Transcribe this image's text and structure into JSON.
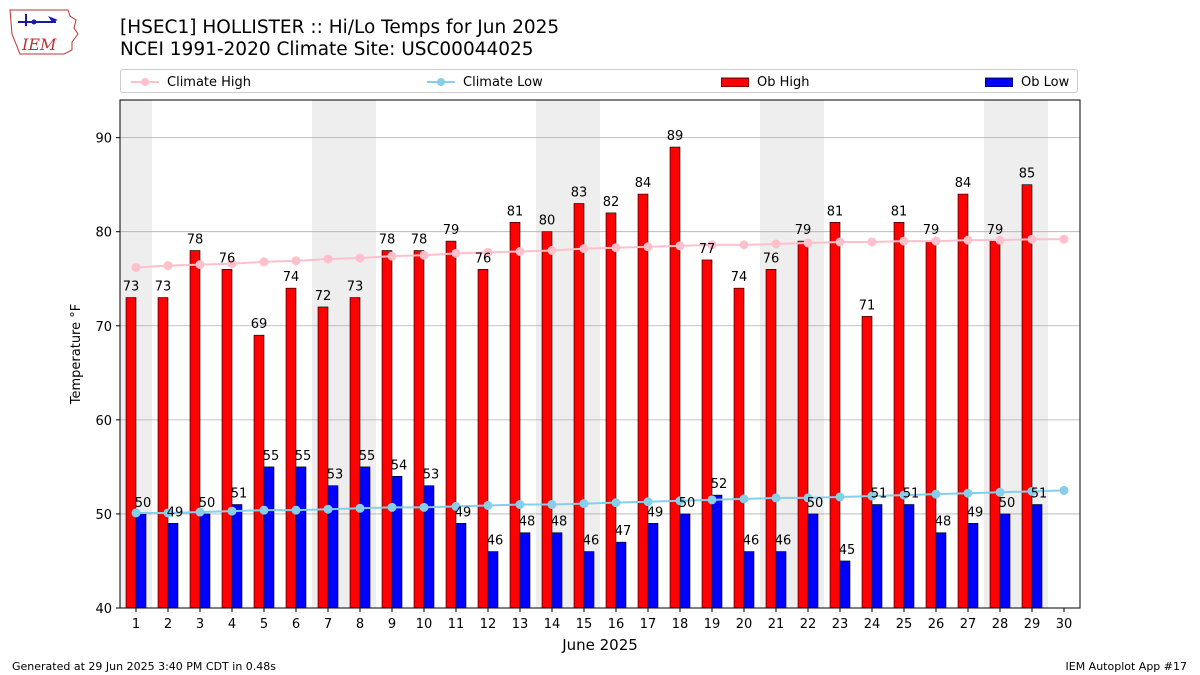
{
  "header": {
    "title_line1": "[HSEC1] HOLLISTER :: Hi/Lo Temps for Jun 2025",
    "title_line2": "NCEI 1991-2020 Climate Site: USC00044025"
  },
  "logo": {
    "text": "IEM"
  },
  "footer": {
    "left": "Generated at 29 Jun 2025 3:40 PM CDT in 0.48s",
    "right": "IEM Autoplot App #17"
  },
  "colors": {
    "ob_high": "#ff0000",
    "ob_low": "#0000ff",
    "climate_high": "#ffc0cb",
    "climate_low": "#87ceeb",
    "weekend_band": "#eeeeee",
    "grid": "#b0b0b0"
  },
  "chart_data": {
    "type": "bar",
    "xlabel": "June 2025",
    "ylabel": "Temperature °F",
    "ylim": [
      40,
      94
    ],
    "yticks": [
      40,
      50,
      60,
      70,
      80,
      90
    ],
    "grid": "horizontal",
    "legend_position": "top",
    "categories": [
      1,
      2,
      3,
      4,
      5,
      6,
      7,
      8,
      9,
      10,
      11,
      12,
      13,
      14,
      15,
      16,
      17,
      18,
      19,
      20,
      21,
      22,
      23,
      24,
      25,
      26,
      27,
      28,
      29,
      30
    ],
    "shaded_days": [
      1,
      7,
      8,
      14,
      15,
      21,
      22,
      28,
      29
    ],
    "series": [
      {
        "name": "Climate High",
        "kind": "line",
        "values": [
          76.2,
          76.4,
          76.5,
          76.6,
          76.8,
          76.9,
          77.1,
          77.2,
          77.4,
          77.5,
          77.7,
          77.8,
          77.9,
          78.0,
          78.2,
          78.3,
          78.4,
          78.5,
          78.6,
          78.6,
          78.7,
          78.8,
          78.9,
          78.9,
          79.0,
          79.0,
          79.1,
          79.1,
          79.2,
          79.2
        ]
      },
      {
        "name": "Climate Low",
        "kind": "line",
        "values": [
          50.1,
          50.1,
          50.2,
          50.3,
          50.4,
          50.4,
          50.5,
          50.6,
          50.7,
          50.7,
          50.8,
          50.9,
          51.0,
          51.0,
          51.1,
          51.2,
          51.3,
          51.4,
          51.5,
          51.6,
          51.7,
          51.7,
          51.8,
          51.9,
          52.0,
          52.1,
          52.2,
          52.3,
          52.4,
          52.5
        ]
      },
      {
        "name": "Ob High",
        "kind": "bar",
        "values": [
          73,
          73,
          78,
          76,
          69,
          74,
          72,
          73,
          78,
          78,
          79,
          76,
          81,
          80,
          83,
          82,
          84,
          89,
          77,
          74,
          76,
          79,
          81,
          71,
          81,
          79,
          84,
          79,
          85,
          null
        ]
      },
      {
        "name": "Ob Low",
        "kind": "bar",
        "values": [
          50,
          49,
          50,
          51,
          55,
          55,
          53,
          55,
          54,
          53,
          49,
          46,
          48,
          48,
          46,
          47,
          49,
          50,
          52,
          46,
          46,
          50,
          45,
          51,
          51,
          48,
          49,
          50,
          51,
          null
        ]
      }
    ]
  }
}
